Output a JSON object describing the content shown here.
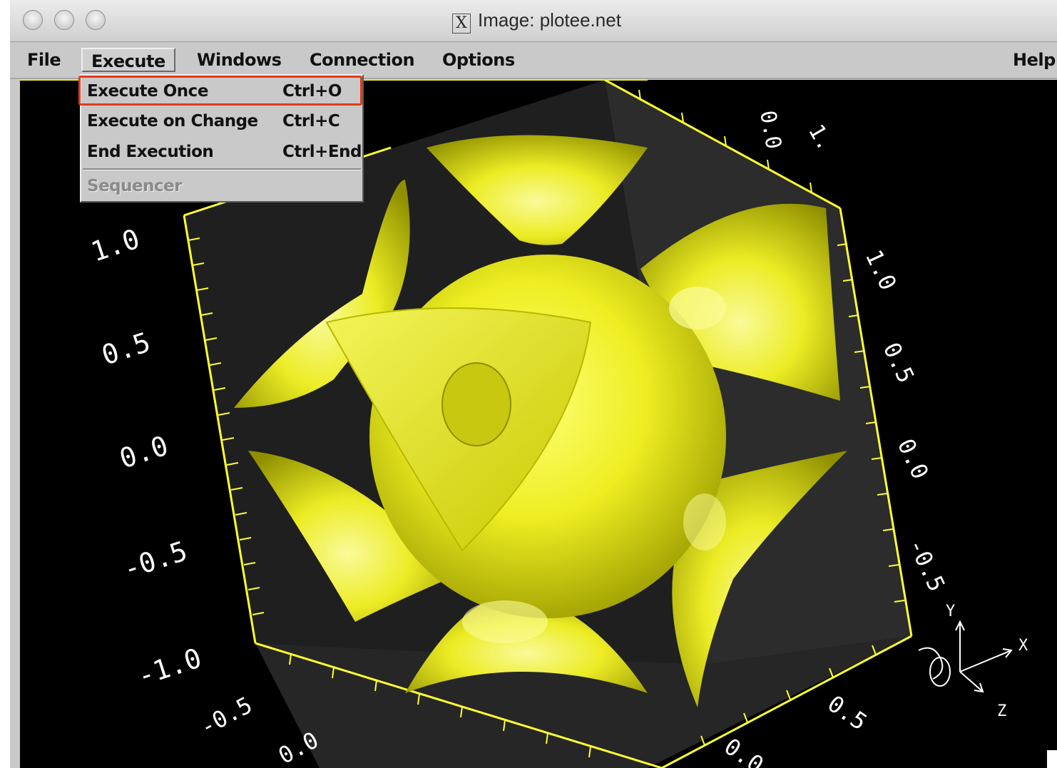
{
  "window": {
    "title": "Image: plotee.net",
    "title_icon": "x11-icon"
  },
  "menubar": {
    "items": [
      "File",
      "Execute",
      "Windows",
      "Connection",
      "Options"
    ],
    "help": "Help"
  },
  "dropdown": {
    "items": [
      {
        "label": "Execute Once",
        "shortcut": "Ctrl+O",
        "enabled": true,
        "highlighted": true
      },
      {
        "label": "Execute on Change",
        "shortcut": "Ctrl+C",
        "enabled": true
      },
      {
        "label": "End Execution",
        "shortcut": "Ctrl+End",
        "enabled": true
      },
      {
        "label": "Sequencer",
        "shortcut": "",
        "enabled": false
      }
    ]
  },
  "plot": {
    "surface_color": "#ffff33",
    "left_axis_ticks": [
      "1.0",
      "0.5",
      "0.0",
      "-0.5",
      "-1.0"
    ],
    "right_axis_ticks": [
      "1.0",
      "0.5",
      "0.0",
      "-0.5"
    ],
    "bottom_ticks": [
      "-0.5",
      "0.0",
      "0.5",
      "0.0"
    ],
    "top_ticks": [
      "0.0",
      "1."
    ],
    "orientation_labels": {
      "x": "X",
      "y": "Y",
      "z": "Z"
    }
  },
  "colors": {
    "highlight": "#e23b1c",
    "axis": "#ffff33",
    "labels": "#ffffff"
  }
}
